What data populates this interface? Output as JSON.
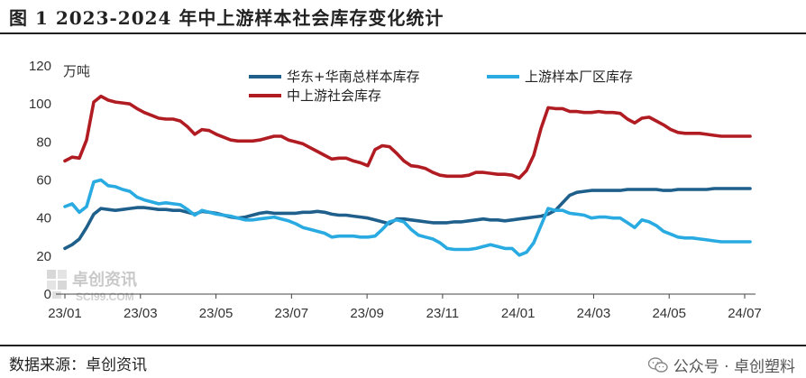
{
  "title": "图 1  2023-2024 年中上游样本社会库存变化统计",
  "source": "数据来源：卓创资讯",
  "footer_brand": "公众号 · 卓创塑料",
  "watermark": {
    "brand": "卓创资讯",
    "site": "SCI99.COM"
  },
  "colors": {
    "series1": "#1f5f8b",
    "series2": "#29abe2",
    "series3": "#b01c22"
  },
  "chart_data": {
    "type": "line",
    "unit_label": "万吨",
    "ylim": [
      0,
      120
    ],
    "y_ticks": [
      0,
      20,
      40,
      60,
      80,
      100,
      120
    ],
    "x_ticks": [
      "23/01",
      "23/03",
      "23/05",
      "23/07",
      "23/09",
      "23/11",
      "24/01",
      "24/03",
      "24/05",
      "24/07"
    ],
    "grid": false,
    "legend_position": "top",
    "series": [
      {
        "name": "华东+华南总样本库存",
        "color": "#1f5f8b",
        "values": [
          24,
          26,
          29,
          35,
          42,
          45,
          44.5,
          44,
          44.5,
          45,
          45.5,
          45.5,
          45,
          44.5,
          44.5,
          44,
          44,
          43,
          42,
          43.5,
          43,
          42.5,
          41.5,
          40.5,
          40,
          40.5,
          41.5,
          42.5,
          43,
          42.5,
          42.5,
          42.5,
          42.5,
          43,
          43,
          43.5,
          43,
          42,
          41.5,
          41.5,
          41,
          40.5,
          40,
          39,
          38,
          37,
          39.5,
          39.5,
          39,
          38.5,
          38,
          37.5,
          37.5,
          37.5,
          38,
          38,
          38.5,
          39,
          39.5,
          39,
          39,
          38.5,
          39,
          39.5,
          40,
          40.5,
          41,
          42,
          44,
          48,
          52,
          53.5,
          54,
          54.5,
          54.5,
          54.5,
          54.5,
          54.5,
          55,
          55,
          55,
          55,
          55,
          54.5,
          54.5,
          55,
          55,
          55,
          55,
          55,
          55.5,
          55.5,
          55.5,
          55.5,
          55.5,
          55.5
        ]
      },
      {
        "name": "上游样本厂区库存",
        "color": "#29abe2",
        "values": [
          46,
          47.5,
          43,
          46,
          59,
          60,
          57,
          56.5,
          55,
          54,
          51,
          49.5,
          48.5,
          47.5,
          48,
          47.5,
          47,
          44.5,
          41.5,
          44,
          43,
          42,
          41.5,
          41,
          40,
          39,
          39,
          39.5,
          40,
          40.5,
          39.5,
          38.5,
          37,
          35,
          34,
          33,
          32,
          30,
          30.5,
          30.5,
          30.5,
          30,
          30,
          30.5,
          34,
          38,
          39,
          38,
          34,
          31,
          30,
          29,
          27,
          24,
          23.5,
          23.5,
          23.5,
          24,
          25,
          26,
          25,
          24,
          24,
          20.5,
          22,
          27,
          36,
          45,
          44,
          44,
          42.5,
          42,
          41.5,
          40,
          40.5,
          40.5,
          40,
          40,
          37.5,
          35,
          39,
          38,
          36,
          33,
          31.5,
          30,
          29.5,
          29.5,
          29,
          28.5,
          28,
          27.5,
          27.5,
          27.5,
          27.5,
          27.5
        ]
      },
      {
        "name": "中上游社会库存",
        "color": "#b01c22",
        "values": [
          70,
          72,
          71.5,
          81,
          101,
          104,
          102,
          101,
          100.5,
          100,
          97.5,
          95.5,
          94,
          92.5,
          92,
          92,
          91,
          88,
          84,
          86.5,
          86,
          84,
          82.5,
          81,
          80.5,
          80.5,
          80.5,
          81,
          82,
          83,
          83,
          81,
          80,
          79,
          77,
          75,
          73,
          71,
          71.5,
          71.5,
          70,
          69,
          67.5,
          76,
          78,
          77.5,
          74,
          70,
          67.5,
          67,
          66,
          64,
          62.5,
          62,
          62,
          62,
          62.5,
          64,
          64,
          63.5,
          63,
          63,
          62.5,
          61,
          65,
          73,
          87,
          98,
          97.5,
          97.5,
          96,
          96,
          95.5,
          95.5,
          96,
          95.5,
          95.5,
          95,
          92,
          90,
          92.5,
          93,
          91,
          89,
          86.5,
          85,
          84.5,
          84.5,
          84.5,
          84,
          83.5,
          83,
          83,
          83,
          83,
          83
        ]
      }
    ]
  }
}
